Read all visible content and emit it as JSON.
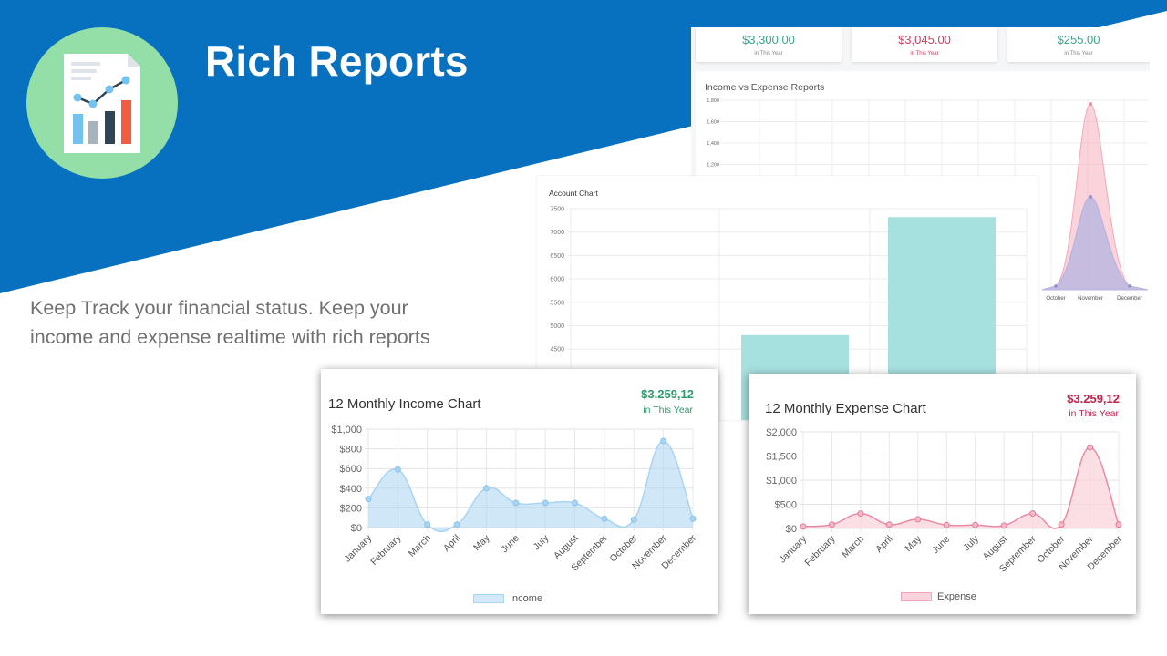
{
  "slide": {
    "title": "Rich Reports",
    "description": "Keep Track your financial status. Keep your income and expense realtime with rich reports",
    "colors": {
      "banner": "#0770bf",
      "logo_circle": "#93dfa7",
      "text": "#707070"
    },
    "logo_icon": "report-chart-icon"
  },
  "summary": [
    {
      "value": "$3,300.00",
      "label": "in This Year",
      "color": "#3aa58a"
    },
    {
      "value": "$3,045.00",
      "label": "in This Year",
      "color": "#d63b5c"
    },
    {
      "value": "$255.00",
      "label": "in This Year",
      "color": "#3aa58a"
    }
  ],
  "reports": {
    "title": "Income vs Expense Reports"
  },
  "account": {
    "title": "Account Chart"
  },
  "income_card": {
    "title": "12 Monthly Income Chart",
    "amount": "$3.259,12",
    "period": "in This Year",
    "legend": "Income",
    "color": "#2d9b6b"
  },
  "expense_card": {
    "title": "12 Monthly Expense Chart",
    "amount": "$3.259,12",
    "period": "in This Year",
    "legend": "Expense",
    "color": "#c4234a"
  },
  "chart_data": [
    {
      "type": "line",
      "title": "Income vs Expense Reports",
      "x": [
        "October",
        "November",
        "December"
      ],
      "yticks": [
        "1,800",
        "1,600",
        "1,400",
        "1,200"
      ],
      "series": [
        {
          "values": [
            0,
            1700,
            0
          ],
          "color": "#f7a7b7"
        },
        {
          "values": [
            0,
            850,
            0
          ],
          "color": "#b3b4e2"
        }
      ]
    },
    {
      "type": "bar",
      "title": "Account Chart",
      "ylim": [
        4000,
        7500
      ],
      "yticks": [
        "7500",
        "7000",
        "6500",
        "6000",
        "5500",
        "5000",
        "4500"
      ],
      "values": [
        4000,
        4800,
        7320
      ],
      "color": "#a6e0df"
    },
    {
      "type": "area",
      "title": "12 Monthly Income Chart",
      "categories": [
        "January",
        "February",
        "March",
        "April",
        "May",
        "June",
        "July",
        "August",
        "September",
        "October",
        "November",
        "December"
      ],
      "yticks": [
        "$1,000",
        "$800",
        "$600",
        "$400",
        "$200",
        "$0"
      ],
      "ylim": [
        0,
        1000
      ],
      "series": [
        {
          "name": "Income",
          "values": [
            290,
            590,
            30,
            30,
            400,
            250,
            250,
            250,
            90,
            80,
            880,
            90
          ],
          "color": "#a9d4f3"
        }
      ]
    },
    {
      "type": "area",
      "title": "12 Monthly Expense Chart",
      "categories": [
        "January",
        "February",
        "March",
        "April",
        "May",
        "June",
        "July",
        "August",
        "September",
        "October",
        "November",
        "December"
      ],
      "yticks": [
        "$2,000",
        "$1,500",
        "$1,000",
        "$500",
        "$0"
      ],
      "ylim": [
        0,
        2000
      ],
      "series": [
        {
          "name": "Expense",
          "values": [
            40,
            80,
            310,
            80,
            190,
            70,
            70,
            60,
            310,
            80,
            1680,
            80
          ],
          "color": "#f2a4b8"
        }
      ]
    }
  ]
}
